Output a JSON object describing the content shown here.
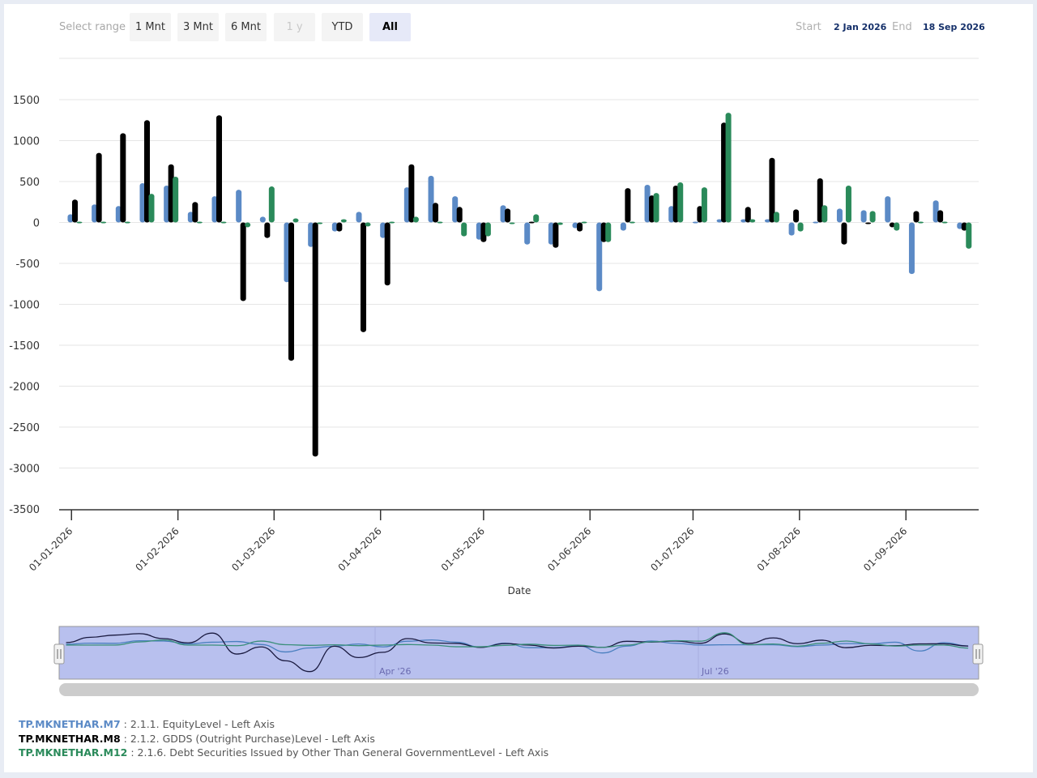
{
  "range_selector": {
    "label": "Select range",
    "buttons": [
      {
        "label": "1 Mnt",
        "state": "normal"
      },
      {
        "label": "3 Mnt",
        "state": "normal"
      },
      {
        "label": "6 Mnt",
        "state": "normal"
      },
      {
        "label": "1 y",
        "state": "disabled"
      },
      {
        "label": "YTD",
        "state": "normal"
      },
      {
        "label": "All",
        "state": "selected"
      }
    ]
  },
  "date_range": {
    "start_label": "Start",
    "start_value": "2 Jan 2026",
    "end_label": "End",
    "end_value": "18 Sep 2026"
  },
  "navigator": {
    "labels": [
      "Apr '26",
      "Jul '26"
    ]
  },
  "legend": [
    {
      "code": "TP.MKNETHAR.M7",
      "desc": " : 2.1.1. EquityLevel - Left Axis",
      "color": "#5b8ac6"
    },
    {
      "code": "TP.MKNETHAR.M8",
      "desc": " : 2.1.2. GDDS (Outright Purchase)Level - Left Axis",
      "color": "#000000"
    },
    {
      "code": "TP.MKNETHAR.M12",
      "desc": " : 2.1.6. Debt Securities Issued by Other Than General GovernmentLevel - Left Axis",
      "color": "#2a8a5a"
    }
  ],
  "chart_data": {
    "type": "bar",
    "title": "",
    "xlabel": "Date",
    "ylabel": "",
    "ylim": [
      -3500,
      1500
    ],
    "yticks": [
      1500,
      1000,
      500,
      0,
      -500,
      -1000,
      -1500,
      -2000,
      -2500,
      -3000,
      -3500
    ],
    "xticks": [
      "01-01-2026",
      "01-02-2026",
      "01-03-2026",
      "01-04-2026",
      "01-05-2026",
      "01-06-2026",
      "01-07-2026",
      "01-08-2026",
      "01-09-2026"
    ],
    "grid": true,
    "legend_position": "bottom-left",
    "x": [
      "2026-01-02",
      "2026-01-09",
      "2026-01-16",
      "2026-01-23",
      "2026-01-30",
      "2026-02-06",
      "2026-02-13",
      "2026-02-20",
      "2026-02-27",
      "2026-03-06",
      "2026-03-13",
      "2026-03-20",
      "2026-03-27",
      "2026-04-03",
      "2026-04-10",
      "2026-04-17",
      "2026-04-24",
      "2026-05-01",
      "2026-05-08",
      "2026-05-15",
      "2026-05-22",
      "2026-05-29",
      "2026-06-05",
      "2026-06-12",
      "2026-06-19",
      "2026-06-26",
      "2026-07-03",
      "2026-07-10",
      "2026-07-17",
      "2026-07-24",
      "2026-07-31",
      "2026-08-07",
      "2026-08-14",
      "2026-08-21",
      "2026-08-28",
      "2026-09-04",
      "2026-09-11",
      "2026-09-18"
    ],
    "series": [
      {
        "name": "TP.MKNETHAR.M7",
        "color": "#5b8ac6",
        "values": [
          100,
          220,
          200,
          480,
          450,
          130,
          320,
          400,
          70,
          -730,
          -300,
          -110,
          130,
          -190,
          430,
          570,
          320,
          -210,
          210,
          -270,
          -270,
          -70,
          -840,
          -100,
          460,
          200,
          10,
          40,
          40,
          40,
          -160,
          10,
          170,
          150,
          320,
          -630,
          270,
          -80
        ]
      },
      {
        "name": "TP.MKNETHAR.M8",
        "color": "#000000",
        "values": [
          280,
          850,
          1090,
          1250,
          710,
          250,
          1310,
          -960,
          -190,
          -1690,
          -2860,
          -110,
          -1340,
          -770,
          710,
          240,
          190,
          -240,
          170,
          10,
          -310,
          -110,
          -240,
          420,
          330,
          450,
          200,
          1220,
          190,
          790,
          160,
          540,
          -270,
          -10,
          -60,
          140,
          150,
          -100
        ]
      },
      {
        "name": "TP.MKNETHAR.M12",
        "color": "#2a8a5a",
        "values": [
          10,
          10,
          10,
          350,
          560,
          10,
          10,
          -60,
          440,
          50,
          -20,
          40,
          -50,
          10,
          70,
          10,
          -170,
          -170,
          -20,
          100,
          -30,
          10,
          -240,
          10,
          360,
          490,
          430,
          1340,
          40,
          130,
          -110,
          210,
          450,
          140,
          -100,
          10,
          10,
          -320
        ]
      }
    ]
  }
}
